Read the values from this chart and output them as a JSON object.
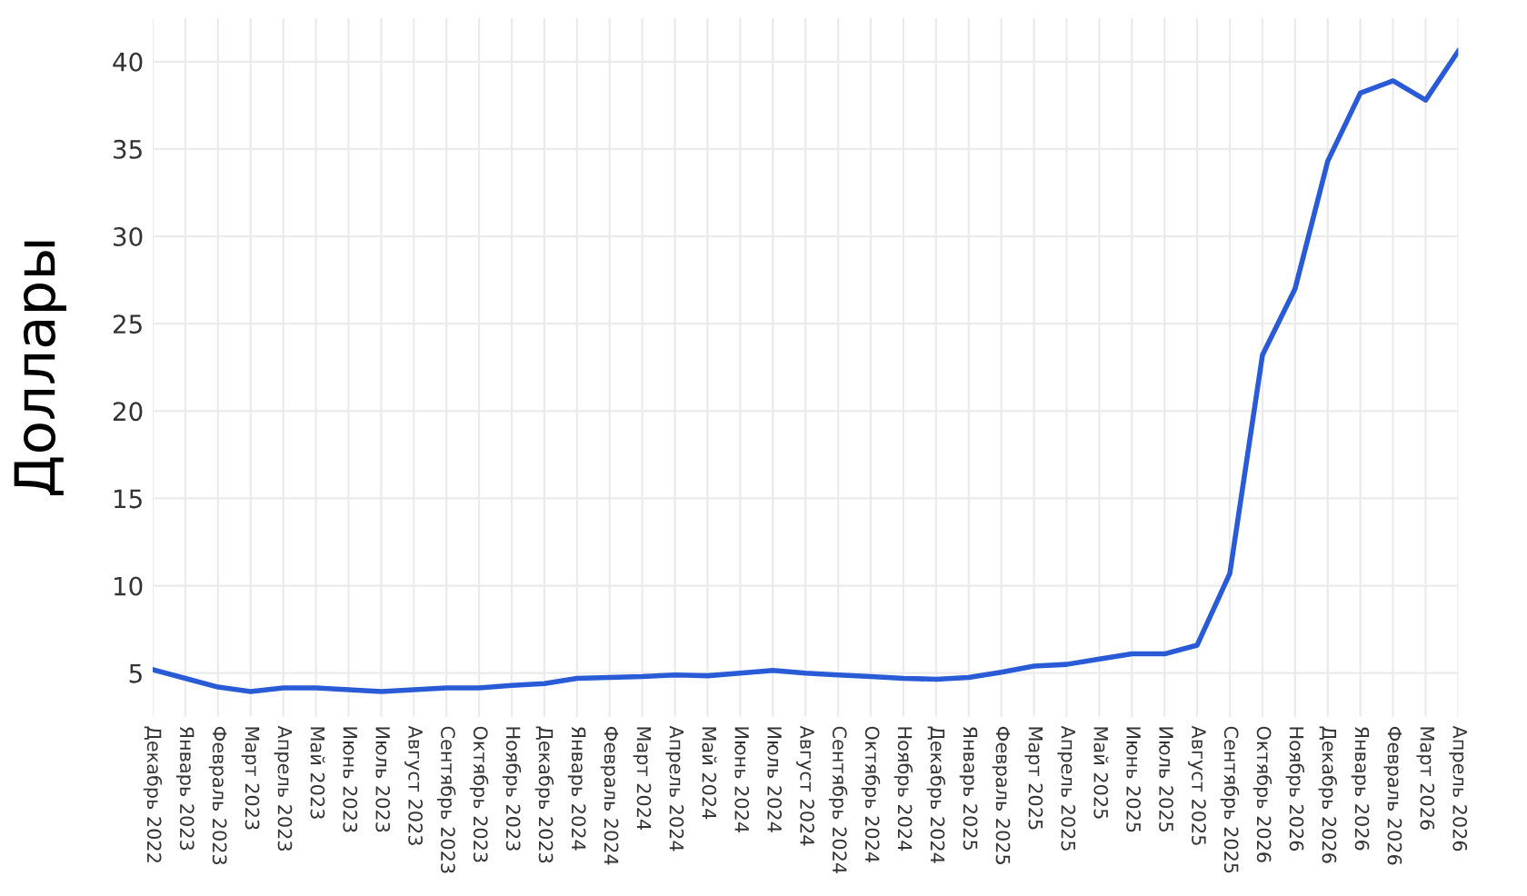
{
  "chart_data": {
    "type": "line",
    "ylabel": "Доллары",
    "categories": [
      "Декабрь 2022",
      "Январь 2023",
      "Февраль 2023",
      "Март 2023",
      "Апрель 2023",
      "Май 2023",
      "Июнь 2023",
      "Июль 2023",
      "Август 2023",
      "Сентябрь 2023",
      "Октябрь 2023",
      "Ноябрь 2023",
      "Декабрь 2023",
      "Январь 2024",
      "Февраль 2024",
      "Март 2024",
      "Апрель 2024",
      "Май 2024",
      "Июнь 2024",
      "Июль 2024",
      "Август 2024",
      "Сентябрь 2024",
      "Октябрь 2024",
      "Ноябрь 2024",
      "Декабрь 2024",
      "Январь 2025",
      "Февраль 2025",
      "Март 2025",
      "Апрель 2025",
      "Май 2025",
      "Июнь 2025",
      "Июль 2025",
      "Август 2025",
      "Сентябрь 2025",
      "Октябрь 2026",
      "Ноябрь 2026",
      "Декабрь 2026",
      "Январь 2026",
      "Февраль 2026",
      "Март 2026",
      "Апрель 2026"
    ],
    "series": [
      {
        "color": "#2a5bd7",
        "values": [
          5.2,
          4.7,
          4.2,
          3.95,
          4.15,
          4.15,
          4.05,
          3.95,
          4.05,
          4.15,
          4.15,
          4.3,
          4.4,
          4.7,
          4.75,
          4.8,
          4.9,
          4.85,
          5.0,
          5.15,
          5.0,
          4.9,
          4.8,
          4.7,
          4.65,
          4.75,
          5.05,
          5.4,
          5.5,
          5.8,
          6.1,
          6.1,
          6.6,
          10.7,
          23.2,
          27.0,
          34.3,
          38.2,
          38.9,
          37.8,
          40.6
        ]
      }
    ],
    "ylim": [
      2.5,
      42.5
    ],
    "yticks": [
      5,
      10,
      15,
      20,
      25,
      30,
      35,
      40
    ],
    "grid": true,
    "legend": false,
    "marker": "none",
    "line_style": "solid"
  }
}
